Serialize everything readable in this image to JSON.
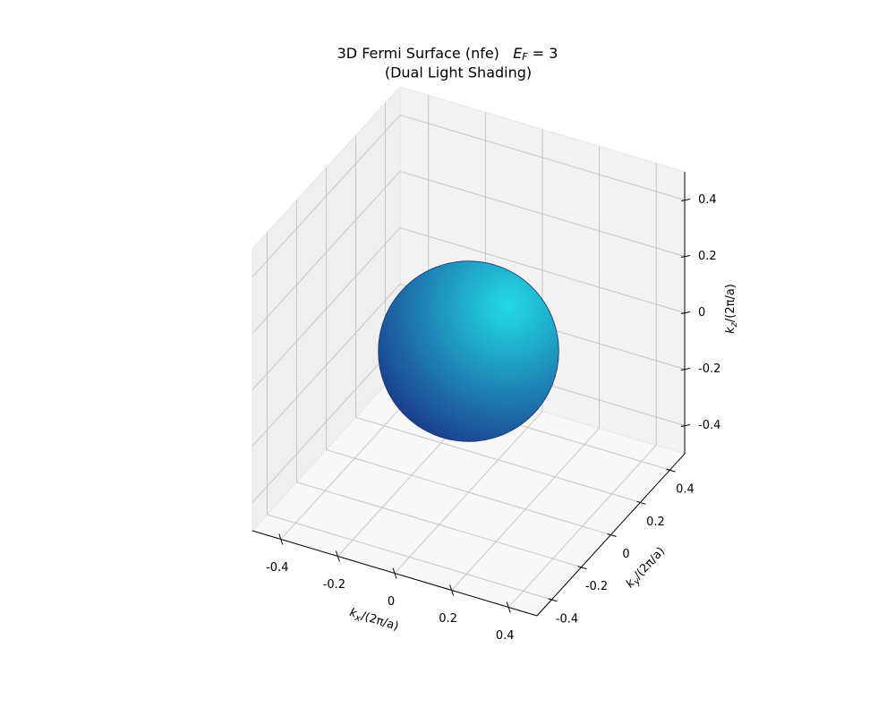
{
  "chart_data": {
    "type": "surface3d",
    "title": "3D Fermi Surface (nfe)",
    "title_energy": {
      "symbol": "E",
      "subscript": "F",
      "relation": " = 3"
    },
    "subtitle": "(Dual Light Shading)",
    "xlabel": {
      "symbol": "k",
      "subscript": "x",
      "rest": "/(2π/a)"
    },
    "ylabel": {
      "symbol": "k",
      "subscript": "y",
      "rest": "/(2π/a)"
    },
    "zlabel": {
      "symbol": "k",
      "subscript": "z",
      "rest": "/(2π/a)"
    },
    "xlim": [
      -0.5,
      0.5
    ],
    "ylim": [
      -0.5,
      0.5
    ],
    "zlim": [
      -0.5,
      0.5
    ],
    "xticks": [
      -0.4,
      -0.2,
      0.0,
      0.2,
      0.4
    ],
    "yticks": [
      -0.4,
      -0.2,
      0.0,
      0.2,
      0.4
    ],
    "zticks": [
      -0.4,
      -0.2,
      0.0,
      0.2,
      0.4
    ],
    "grid": true,
    "surface": {
      "shape": "sphere",
      "center": [
        0,
        0,
        0
      ],
      "radius": 0.32,
      "color_light": "#22dbe8",
      "color_dark": "#1a2a80"
    }
  }
}
